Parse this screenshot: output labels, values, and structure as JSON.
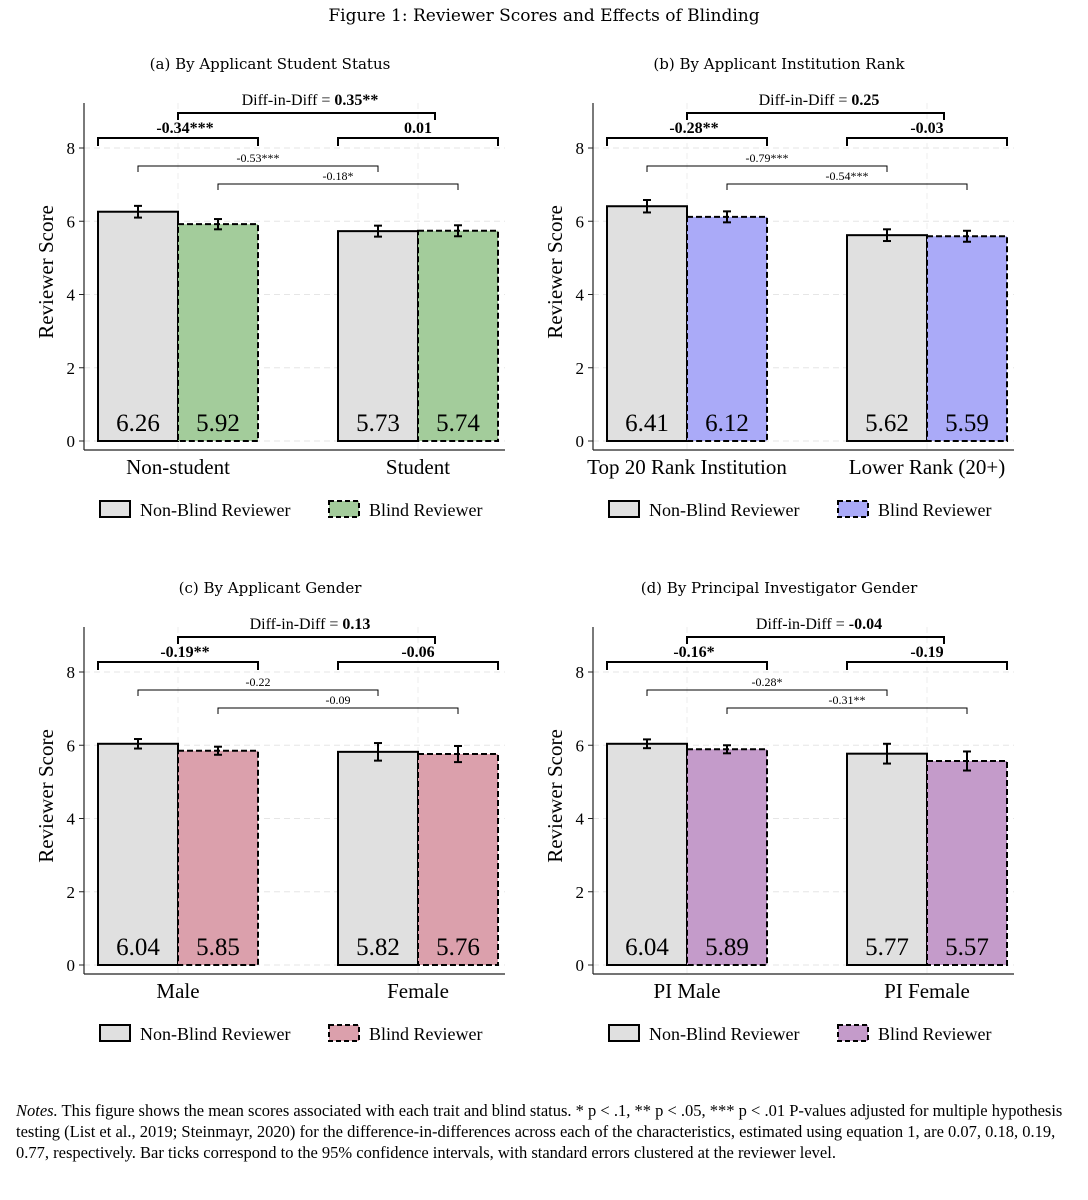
{
  "figure": {
    "title": "Figure 1: Reviewer Scores and Effects of Blinding",
    "notes_lead": "Notes.",
    "notes_text": "This figure shows the mean scores associated with each trait and blind status. * p < .1, ** p < .05, *** p < .01 P-values adjusted for multiple hypothesis testing (List et al., 2019; Steinmayr, 2020) for the difference-in-differences across each of the characteristics, estimated using equation 1, are 0.07, 0.18, 0.19, 0.77, respectively. Bar ticks correspond to the 95% confidence intervals, with standard errors clustered at the reviewer level."
  },
  "colors": {
    "nonblind": "#e0e0e0",
    "blind_a": "#a3cc9b",
    "blind_b": "#aaaaf8",
    "blind_c": "#dba0ac",
    "blind_d": "#c49bca"
  },
  "chart_data": [
    {
      "type": "bar",
      "title": "(a) By Applicant Student Status",
      "ylabel": "Reviewer Score",
      "ylim": [
        0,
        9.2
      ],
      "yticks": [
        0,
        2,
        4,
        6,
        8
      ],
      "categories": [
        "Non-student",
        "Student"
      ],
      "series": [
        {
          "name": "Non-Blind Reviewer",
          "values": [
            6.26,
            5.73
          ],
          "labels": [
            "6.26",
            "5.73"
          ],
          "ci": [
            [
              6.1,
              6.42
            ],
            [
              5.58,
              5.88
            ]
          ]
        },
        {
          "name": "Blind Reviewer",
          "values": [
            5.92,
            5.74
          ],
          "labels": [
            "5.92",
            "5.74"
          ],
          "ci": [
            [
              5.78,
              6.06
            ],
            [
              5.59,
              5.89
            ]
          ]
        }
      ],
      "blind_color": "#a3cc9b",
      "did_label": "Diff-in-Diff = ",
      "did_value": "0.35**",
      "within_diffs": [
        "-0.34***",
        "0.01"
      ],
      "cross_diffs": [
        "-0.53***",
        "-0.18*"
      ]
    },
    {
      "type": "bar",
      "title": "(b) By Applicant Institution Rank",
      "ylabel": "Reviewer Score",
      "ylim": [
        0,
        9.2
      ],
      "yticks": [
        0,
        2,
        4,
        6,
        8
      ],
      "categories": [
        "Top 20 Rank Institution",
        "Lower Rank (20+)"
      ],
      "series": [
        {
          "name": "Non-Blind Reviewer",
          "values": [
            6.41,
            5.62
          ],
          "labels": [
            "6.41",
            "5.62"
          ],
          "ci": [
            [
              6.24,
              6.58
            ],
            [
              5.46,
              5.78
            ]
          ]
        },
        {
          "name": "Blind Reviewer",
          "values": [
            6.12,
            5.59
          ],
          "labels": [
            "6.12",
            "5.59"
          ],
          "ci": [
            [
              5.97,
              6.27
            ],
            [
              5.44,
              5.74
            ]
          ]
        }
      ],
      "blind_color": "#aaaaf8",
      "did_label": "Diff-in-Diff = ",
      "did_value": "0.25",
      "within_diffs": [
        "-0.28**",
        "-0.03"
      ],
      "cross_diffs": [
        "-0.79***",
        "-0.54***"
      ]
    },
    {
      "type": "bar",
      "title": "(c) By Applicant Gender",
      "ylabel": "Reviewer Score",
      "ylim": [
        0,
        9.2
      ],
      "yticks": [
        0,
        2,
        4,
        6,
        8
      ],
      "categories": [
        "Male",
        "Female"
      ],
      "series": [
        {
          "name": "Non-Blind Reviewer",
          "values": [
            6.04,
            5.82
          ],
          "labels": [
            "6.04",
            "5.82"
          ],
          "ci": [
            [
              5.91,
              6.17
            ],
            [
              5.58,
              6.06
            ]
          ]
        },
        {
          "name": "Blind Reviewer",
          "values": [
            5.85,
            5.76
          ],
          "labels": [
            "5.85",
            "5.76"
          ],
          "ci": [
            [
              5.74,
              5.96
            ],
            [
              5.54,
              5.98
            ]
          ]
        }
      ],
      "blind_color": "#dba0ac",
      "did_label": "Diff-in-Diff = ",
      "did_value": "0.13",
      "within_diffs": [
        "-0.19**",
        "-0.06"
      ],
      "cross_diffs": [
        "-0.22",
        "-0.09"
      ]
    },
    {
      "type": "bar",
      "title": "(d) By Principal Investigator Gender",
      "ylabel": "Reviewer Score",
      "ylim": [
        0,
        9.2
      ],
      "yticks": [
        0,
        2,
        4,
        6,
        8
      ],
      "categories": [
        "PI Male",
        "PI Female"
      ],
      "series": [
        {
          "name": "Non-Blind Reviewer",
          "values": [
            6.04,
            5.77
          ],
          "labels": [
            "6.04",
            "5.77"
          ],
          "ci": [
            [
              5.92,
              6.16
            ],
            [
              5.5,
              6.04
            ]
          ]
        },
        {
          "name": "Blind Reviewer",
          "values": [
            5.89,
            5.57
          ],
          "labels": [
            "5.89",
            "5.57"
          ],
          "ci": [
            [
              5.78,
              6.0
            ],
            [
              5.31,
              5.83
            ]
          ]
        }
      ],
      "blind_color": "#c49bca",
      "did_label": "Diff-in-Diff = ",
      "did_value": "-0.04",
      "within_diffs": [
        "-0.16*",
        "-0.19"
      ],
      "cross_diffs": [
        "-0.28*",
        "-0.31**"
      ]
    }
  ]
}
